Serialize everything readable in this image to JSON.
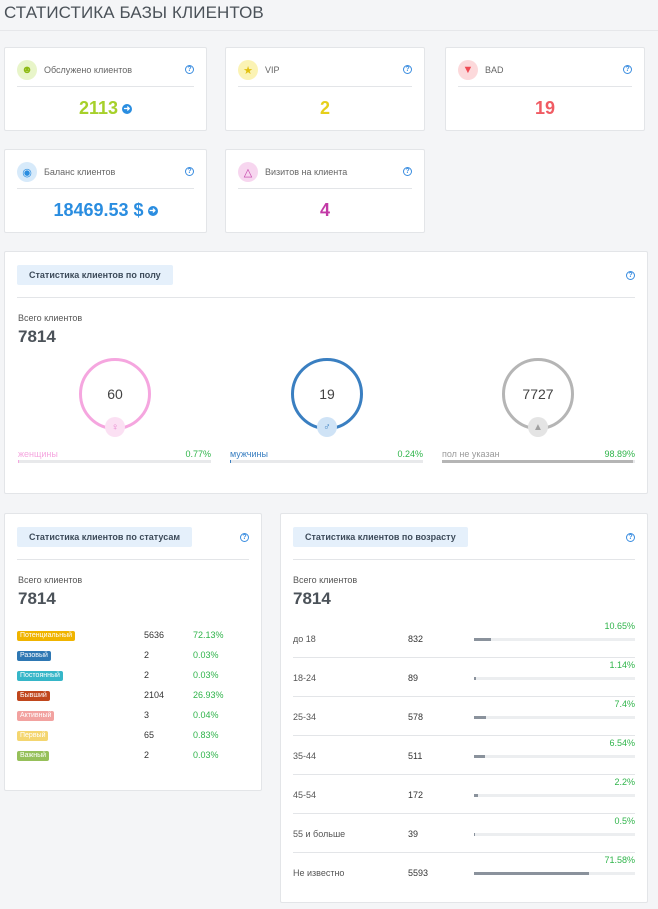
{
  "page": {
    "title": "СТАТИСТИКА БАЗЫ КЛИЕНТОВ"
  },
  "colors": {
    "green": "#2fb44a",
    "accent": "#2a8de0"
  },
  "cards": {
    "served": {
      "label": "Обслужено клиентов",
      "value": "2113",
      "icon": "user-add-icon",
      "color": "#a6d02a"
    },
    "vip": {
      "label": "VIP",
      "value": "2",
      "icon": "star-icon",
      "color": "#e6cf1a"
    },
    "bad": {
      "label": "BAD",
      "value": "19",
      "icon": "thumbs-down-icon",
      "color": "#f05b63"
    },
    "balance": {
      "label": "Баланс клиентов",
      "value": "18469.53 $",
      "icon": "piggy-bank-icon",
      "color": "#2a8de0"
    },
    "visits": {
      "label": "Визитов на клиента",
      "value": "4",
      "icon": "cloche-icon",
      "color": "#c23aa6"
    }
  },
  "gender": {
    "title": "Статистика клиентов по полу",
    "total_label": "Всего клиентов",
    "total": "7814",
    "groups": [
      {
        "count": "60",
        "label": "женщины",
        "pct": "0.77%",
        "fraction": 0.0077,
        "color": "#f5a6df",
        "icon": "female-icon"
      },
      {
        "count": "19",
        "label": "мужчины",
        "pct": "0.24%",
        "fraction": 0.0024,
        "color": "#3a7fc1",
        "icon": "male-icon"
      },
      {
        "count": "7727",
        "label": "пол не указан",
        "pct": "98.89%",
        "fraction": 0.9889,
        "color": "#b5b5b5",
        "icon": "unknown-gender-icon"
      }
    ]
  },
  "statuses": {
    "title": "Статистика клиентов по статусам",
    "total_label": "Всего клиентов",
    "total": "7814",
    "rows": [
      {
        "label": "Потенциальный",
        "count": "5636",
        "pct": "72.13%",
        "color": "#f0b400"
      },
      {
        "label": "Разовый",
        "count": "2",
        "pct": "0.03%",
        "color": "#2e77b3"
      },
      {
        "label": "Постоянный",
        "count": "2",
        "pct": "0.03%",
        "color": "#36b6c8"
      },
      {
        "label": "Бывший",
        "count": "2104",
        "pct": "26.93%",
        "color": "#c0461c"
      },
      {
        "label": "Активный",
        "count": "3",
        "pct": "0.04%",
        "color": "#f2a2a0"
      },
      {
        "label": "Первый",
        "count": "65",
        "pct": "0.83%",
        "color": "#f4d670"
      },
      {
        "label": "Важный",
        "count": "2",
        "pct": "0.03%",
        "color": "#96c05a"
      }
    ]
  },
  "age": {
    "title": "Статистика клиентов по возрасту",
    "total_label": "Всего клиентов",
    "total": "7814",
    "rows": [
      {
        "label": "до 18",
        "count": "832",
        "pct": "10.65%",
        "fraction": 0.1065
      },
      {
        "label": "18-24",
        "count": "89",
        "pct": "1.14%",
        "fraction": 0.0114
      },
      {
        "label": "25-34",
        "count": "578",
        "pct": "7.4%",
        "fraction": 0.074
      },
      {
        "label": "35-44",
        "count": "511",
        "pct": "6.54%",
        "fraction": 0.0654
      },
      {
        "label": "45-54",
        "count": "172",
        "pct": "2.2%",
        "fraction": 0.022
      },
      {
        "label": "55 и больше",
        "count": "39",
        "pct": "0.5%",
        "fraction": 0.005
      },
      {
        "label": "Не известно",
        "count": "5593",
        "pct": "71.58%",
        "fraction": 0.7158
      }
    ]
  }
}
